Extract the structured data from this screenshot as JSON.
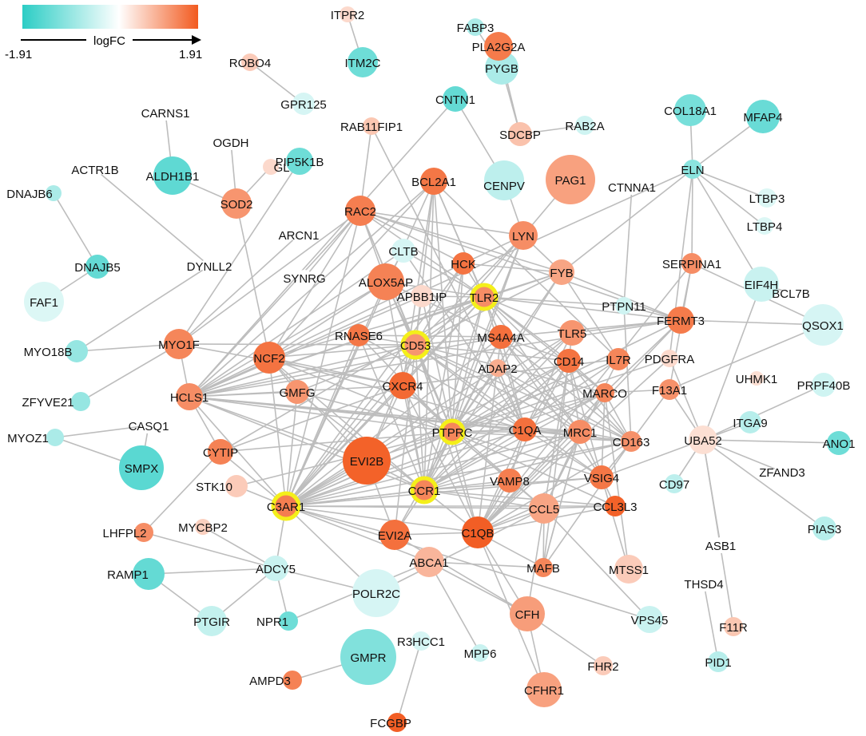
{
  "legend": {
    "gradient": [
      "#2ccdc5",
      "#ffffff",
      "#f25a1f"
    ],
    "label": "logFC",
    "min_label": "-1.91",
    "max_label": "1.91"
  },
  "colors": {
    "low": "#2ccdc5",
    "mid": "#ffffff",
    "high": "#f25a1f",
    "edge": "#bdbdbd",
    "hub_ring": "#f4ef1a"
  },
  "nodes": [
    {
      "id": "ITPR2",
      "fc": 0.3
    },
    {
      "id": "ITM2C",
      "fc": -1.2
    },
    {
      "id": "FABP3",
      "fc": -0.6
    },
    {
      "id": "PYGB",
      "fc": -0.6
    },
    {
      "id": "PLA2G2A",
      "fc": 1.45
    },
    {
      "id": "ROBO4",
      "fc": 0.45
    },
    {
      "id": "GPR125",
      "fc": -0.25
    },
    {
      "id": "CARNS1",
      "fc": 0
    },
    {
      "id": "CNTN1",
      "fc": -1.3
    },
    {
      "id": "RAB2A",
      "fc": -0.3
    },
    {
      "id": "SDCBP",
      "fc": 0.55
    },
    {
      "id": "COL18A1",
      "fc": -1.1
    },
    {
      "id": "MFAP4",
      "fc": -1.25
    },
    {
      "id": "RAB11FIP1",
      "fc": 0.5
    },
    {
      "id": "OGDH",
      "fc": 0
    },
    {
      "id": "ALDH1B1",
      "fc": -1.35
    },
    {
      "id": "GLRX",
      "fc": 0.3
    },
    {
      "id": "PIP5K1B",
      "fc": -1.2
    },
    {
      "id": "BCL2A1",
      "fc": 1.5
    },
    {
      "id": "CENPV",
      "fc": -0.45
    },
    {
      "id": "PAG1",
      "fc": 0.95
    },
    {
      "id": "ELN",
      "fc": -0.9
    },
    {
      "id": "ACTR1B",
      "fc": 0
    },
    {
      "id": "CTNNA1",
      "fc": 0
    },
    {
      "id": "LTBP3",
      "fc": -0.2
    },
    {
      "id": "DNAJB6",
      "fc": -0.6
    },
    {
      "id": "SOD2",
      "fc": 1.1
    },
    {
      "id": "RAC2",
      "fc": 1.4
    },
    {
      "id": "ARCN1",
      "fc": 0
    },
    {
      "id": "LYN",
      "fc": 1.2
    },
    {
      "id": "LTBP4",
      "fc": -0.2
    },
    {
      "id": "DNAJB5",
      "fc": -1.3
    },
    {
      "id": "DYNLL2",
      "fc": 0
    },
    {
      "id": "CLTB",
      "fc": -0.25
    },
    {
      "id": "HCK",
      "fc": 1.55
    },
    {
      "id": "FYB",
      "fc": 0.9
    },
    {
      "id": "SERPINA1",
      "fc": 1.2
    },
    {
      "id": "EIF4H",
      "fc": -0.35
    },
    {
      "id": "FAF1",
      "fc": -0.2
    },
    {
      "id": "SYNRG",
      "fc": 0
    },
    {
      "id": "ALOX5AP",
      "fc": 1.35
    },
    {
      "id": "APBB1IP",
      "fc": 0.3
    },
    {
      "id": "TLR2",
      "fc": 1.2
    },
    {
      "id": "PTPN11",
      "fc": -0.3
    },
    {
      "id": "BCL7B",
      "fc": 0
    },
    {
      "id": "FERMT3",
      "fc": 1.45
    },
    {
      "id": "QSOX1",
      "fc": -0.25
    },
    {
      "id": "MYO18B",
      "fc": -0.8
    },
    {
      "id": "MYO1F",
      "fc": 1.3
    },
    {
      "id": "NCF2",
      "fc": 1.55
    },
    {
      "id": "RNASE6",
      "fc": 1.5
    },
    {
      "id": "CD53",
      "fc": 1.1
    },
    {
      "id": "MS4A4A",
      "fc": 1.6
    },
    {
      "id": "TLR5",
      "fc": 1.1
    },
    {
      "id": "IL7R",
      "fc": 1.3
    },
    {
      "id": "PDGFRA",
      "fc": 0.3
    },
    {
      "id": "UHMK1",
      "fc": 0.25
    },
    {
      "id": "PRPF40B",
      "fc": -0.3
    },
    {
      "id": "ZFYVE21",
      "fc": -0.8
    },
    {
      "id": "HCLS1",
      "fc": 1.2
    },
    {
      "id": "ADAP2",
      "fc": 0.8
    },
    {
      "id": "CD14",
      "fc": 1.55
    },
    {
      "id": "F13A1",
      "fc": 1.15
    },
    {
      "id": "CXCR4",
      "fc": 1.7
    },
    {
      "id": "GMFG",
      "fc": 1.1
    },
    {
      "id": "MARCO",
      "fc": 1.3
    },
    {
      "id": "ITGA9",
      "fc": -0.5
    },
    {
      "id": "ANO1",
      "fc": -1.2
    },
    {
      "id": "MYOZ1",
      "fc": -0.6
    },
    {
      "id": "CASQ1",
      "fc": 0
    },
    {
      "id": "CYTIP",
      "fc": 1.35
    },
    {
      "id": "PTPRC",
      "fc": 1.3
    },
    {
      "id": "C1QA",
      "fc": 1.6
    },
    {
      "id": "MRC1",
      "fc": 1.2
    },
    {
      "id": "CD163",
      "fc": 1.15
    },
    {
      "id": "UBA52",
      "fc": 0.25
    },
    {
      "id": "ZFAND3",
      "fc": 0
    },
    {
      "id": "SMPX",
      "fc": -1.4
    },
    {
      "id": "EVI2B",
      "fc": 1.8
    },
    {
      "id": "STK10",
      "fc": 0.45
    },
    {
      "id": "VAMP8",
      "fc": 1.4
    },
    {
      "id": "VSIG4",
      "fc": 1.5
    },
    {
      "id": "CD97",
      "fc": -0.45
    },
    {
      "id": "C3AR1",
      "fc": 1.4
    },
    {
      "id": "CCR1",
      "fc": 1.3
    },
    {
      "id": "LHFPL2",
      "fc": 1.2
    },
    {
      "id": "MYCBP2",
      "fc": 0.4
    },
    {
      "id": "CCL5",
      "fc": 0.9
    },
    {
      "id": "CCL3L3",
      "fc": 1.8
    },
    {
      "id": "PIAS3",
      "fc": -0.5
    },
    {
      "id": "C1QB",
      "fc": 1.85
    },
    {
      "id": "ASB1",
      "fc": 0
    },
    {
      "id": "EVI2A",
      "fc": 1.6
    },
    {
      "id": "RAMP1",
      "fc": -1.3
    },
    {
      "id": "ADCY5",
      "fc": -0.35
    },
    {
      "id": "ABCA1",
      "fc": 0.7
    },
    {
      "id": "MAFB",
      "fc": 1.3
    },
    {
      "id": "MTSS1",
      "fc": 0.45
    },
    {
      "id": "THSD4",
      "fc": 0
    },
    {
      "id": "POLR2C",
      "fc": -0.25
    },
    {
      "id": "NPR1",
      "fc": -1.2
    },
    {
      "id": "PTGIR",
      "fc": -0.4
    },
    {
      "id": "CFH",
      "fc": 1.0
    },
    {
      "id": "VPS45",
      "fc": -0.35
    },
    {
      "id": "F11R",
      "fc": 0.5
    },
    {
      "id": "GMPR",
      "fc": -1.0
    },
    {
      "id": "R3HCC1",
      "fc": -0.25
    },
    {
      "id": "MPP6",
      "fc": -0.35
    },
    {
      "id": "FHR2",
      "fc": 0.45
    },
    {
      "id": "PID1",
      "fc": -0.5
    },
    {
      "id": "AMPD3",
      "fc": 1.35
    },
    {
      "id": "CFHR1",
      "fc": 0.95
    },
    {
      "id": "FCGBP",
      "fc": 1.85
    }
  ]
}
